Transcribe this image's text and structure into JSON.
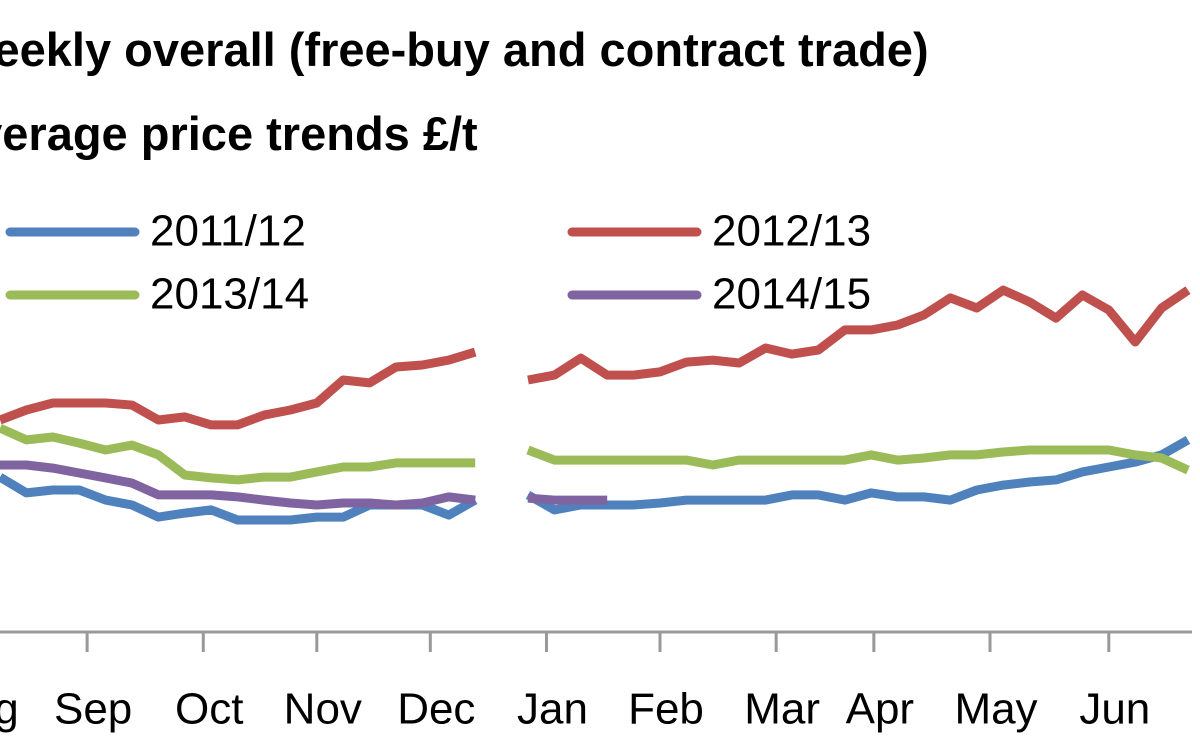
{
  "chart_data": {
    "type": "line",
    "title": "Weekly overall (free-buy and contract trade) average price trends £/t",
    "x": [
      0,
      1,
      2,
      3,
      4,
      5,
      6,
      7,
      8,
      9,
      10,
      11,
      12,
      13,
      14,
      15,
      16,
      17,
      18,
      19,
      20,
      21,
      22,
      23,
      24,
      25,
      26,
      27,
      28,
      29,
      30,
      31,
      32,
      33,
      34,
      35,
      36,
      37,
      38,
      39,
      40,
      41,
      42,
      43,
      44,
      45
    ],
    "xlim": [
      0,
      45
    ],
    "xticks": [
      {
        "value": -1,
        "label": "Aug"
      },
      {
        "value": 3.3,
        "label": "Sep"
      },
      {
        "value": 7.7,
        "label": "Oct"
      },
      {
        "value": 12,
        "label": "Nov"
      },
      {
        "value": 16.3,
        "label": "Dec"
      },
      {
        "value": 20.7,
        "label": "Jan"
      },
      {
        "value": 25,
        "label": "Feb"
      },
      {
        "value": 29.4,
        "label": "Mar"
      },
      {
        "value": 33.1,
        "label": "Apr"
      },
      {
        "value": 37.5,
        "label": "May"
      },
      {
        "value": 42,
        "label": "Jun"
      }
    ],
    "ylim": [
      100,
      250
    ],
    "series": [
      {
        "name": "2011/12",
        "color": "#4f81bd",
        "values": [
          153.8,
          148.3,
          149.3,
          149.3,
          145.8,
          144.1,
          139.9,
          141.3,
          142.4,
          138.9,
          138.9,
          138.9,
          139.9,
          139.9,
          144.1,
          144.1,
          144.1,
          140.6,
          145.8,
          null,
          147.6,
          142.4,
          144.1,
          144.1,
          144.1,
          144.8,
          145.8,
          145.8,
          145.8,
          145.8,
          147.6,
          147.6,
          145.8,
          148.3,
          146.9,
          146.9,
          145.8,
          149.3,
          151.0,
          152.1,
          152.8,
          155.6,
          157.3,
          159.0,
          161.5,
          166.7
        ]
      },
      {
        "name": "2012/13",
        "color": "#c0504d",
        "values": [
          173.6,
          177.1,
          179.5,
          179.5,
          179.5,
          178.8,
          173.6,
          174.7,
          171.9,
          171.9,
          175.3,
          177.1,
          179.5,
          187.5,
          186.5,
          192.0,
          192.7,
          194.4,
          197.2,
          null,
          187.5,
          189.2,
          195.1,
          189.2,
          189.2,
          190.3,
          193.7,
          194.4,
          193.4,
          198.6,
          196.5,
          197.9,
          204.9,
          204.9,
          206.6,
          210.1,
          216.0,
          212.5,
          218.7,
          214.6,
          209.0,
          217.0,
          211.8,
          200.7,
          212.5,
          218.7
        ]
      },
      {
        "name": "2013/14",
        "color": "#9bbb59",
        "values": [
          170.8,
          166.7,
          167.7,
          165.6,
          163.2,
          164.9,
          161.5,
          154.5,
          153.5,
          152.8,
          153.8,
          153.8,
          155.6,
          157.3,
          157.3,
          158.7,
          158.7,
          158.7,
          158.7,
          null,
          163.2,
          159.7,
          159.7,
          159.7,
          159.7,
          159.7,
          159.7,
          158.0,
          159.7,
          159.7,
          159.7,
          159.7,
          159.7,
          161.5,
          159.7,
          160.4,
          161.5,
          161.5,
          162.5,
          163.2,
          163.2,
          163.2,
          163.2,
          161.5,
          160.4,
          156.2
        ]
      },
      {
        "name": "2014/15",
        "color": "#8064a2",
        "values": [
          158.0,
          158.0,
          156.9,
          155.2,
          153.5,
          151.7,
          147.6,
          147.6,
          147.6,
          146.9,
          145.8,
          144.8,
          144.1,
          144.8,
          144.8,
          144.1,
          144.8,
          146.9,
          145.8,
          null,
          146.5,
          145.8,
          145.8,
          145.8,
          null,
          null,
          null,
          null,
          null,
          null,
          null,
          null,
          null,
          null,
          null,
          null,
          null,
          null,
          null,
          null,
          null,
          null,
          null,
          null,
          null,
          null
        ]
      }
    ]
  }
}
